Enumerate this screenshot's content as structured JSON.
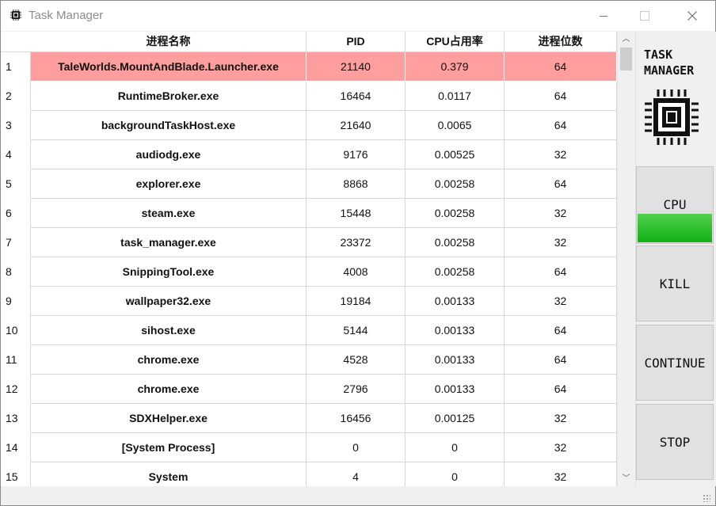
{
  "window": {
    "title": "Task Manager"
  },
  "table": {
    "columns": [
      "进程名称",
      "PID",
      "CPU占用率",
      "进程位数"
    ],
    "rows": [
      {
        "num": "1",
        "name": "TaleWorlds.MountAndBlade.Launcher.exe",
        "pid": "21140",
        "cpu": "0.379",
        "bits": "64"
      },
      {
        "num": "2",
        "name": "RuntimeBroker.exe",
        "pid": "16464",
        "cpu": "0.0117",
        "bits": "64"
      },
      {
        "num": "3",
        "name": "backgroundTaskHost.exe",
        "pid": "21640",
        "cpu": "0.0065",
        "bits": "64"
      },
      {
        "num": "4",
        "name": "audiodg.exe",
        "pid": "9176",
        "cpu": "0.00525",
        "bits": "32"
      },
      {
        "num": "5",
        "name": "explorer.exe",
        "pid": "8868",
        "cpu": "0.00258",
        "bits": "64"
      },
      {
        "num": "6",
        "name": "steam.exe",
        "pid": "15448",
        "cpu": "0.00258",
        "bits": "32"
      },
      {
        "num": "7",
        "name": "task_manager.exe",
        "pid": "23372",
        "cpu": "0.00258",
        "bits": "32"
      },
      {
        "num": "8",
        "name": "SnippingTool.exe",
        "pid": "4008",
        "cpu": "0.00258",
        "bits": "64"
      },
      {
        "num": "9",
        "name": "wallpaper32.exe",
        "pid": "19184",
        "cpu": "0.00133",
        "bits": "32"
      },
      {
        "num": "10",
        "name": "sihost.exe",
        "pid": "5144",
        "cpu": "0.00133",
        "bits": "64"
      },
      {
        "num": "11",
        "name": "chrome.exe",
        "pid": "4528",
        "cpu": "0.00133",
        "bits": "64"
      },
      {
        "num": "12",
        "name": "chrome.exe",
        "pid": "2796",
        "cpu": "0.00133",
        "bits": "64"
      },
      {
        "num": "13",
        "name": "SDXHelper.exe",
        "pid": "16456",
        "cpu": "0.00125",
        "bits": "32"
      },
      {
        "num": "14",
        "name": "[System Process]",
        "pid": "0",
        "cpu": "0",
        "bits": "32"
      },
      {
        "num": "15",
        "name": "System",
        "pid": "4",
        "cpu": "0",
        "bits": "32"
      }
    ],
    "selected_row": 0
  },
  "sidebar": {
    "label_line1": "TASK",
    "label_line2": "MANAGER",
    "icon": "cpu-chip-icon",
    "buttons": {
      "cpu": "CPU",
      "kill": "KILL",
      "continue": "CONTINUE",
      "stop": "STOP"
    },
    "cpu_bar_color": "#1db41d"
  },
  "colors": {
    "selected_row": "#ff9e9e"
  }
}
